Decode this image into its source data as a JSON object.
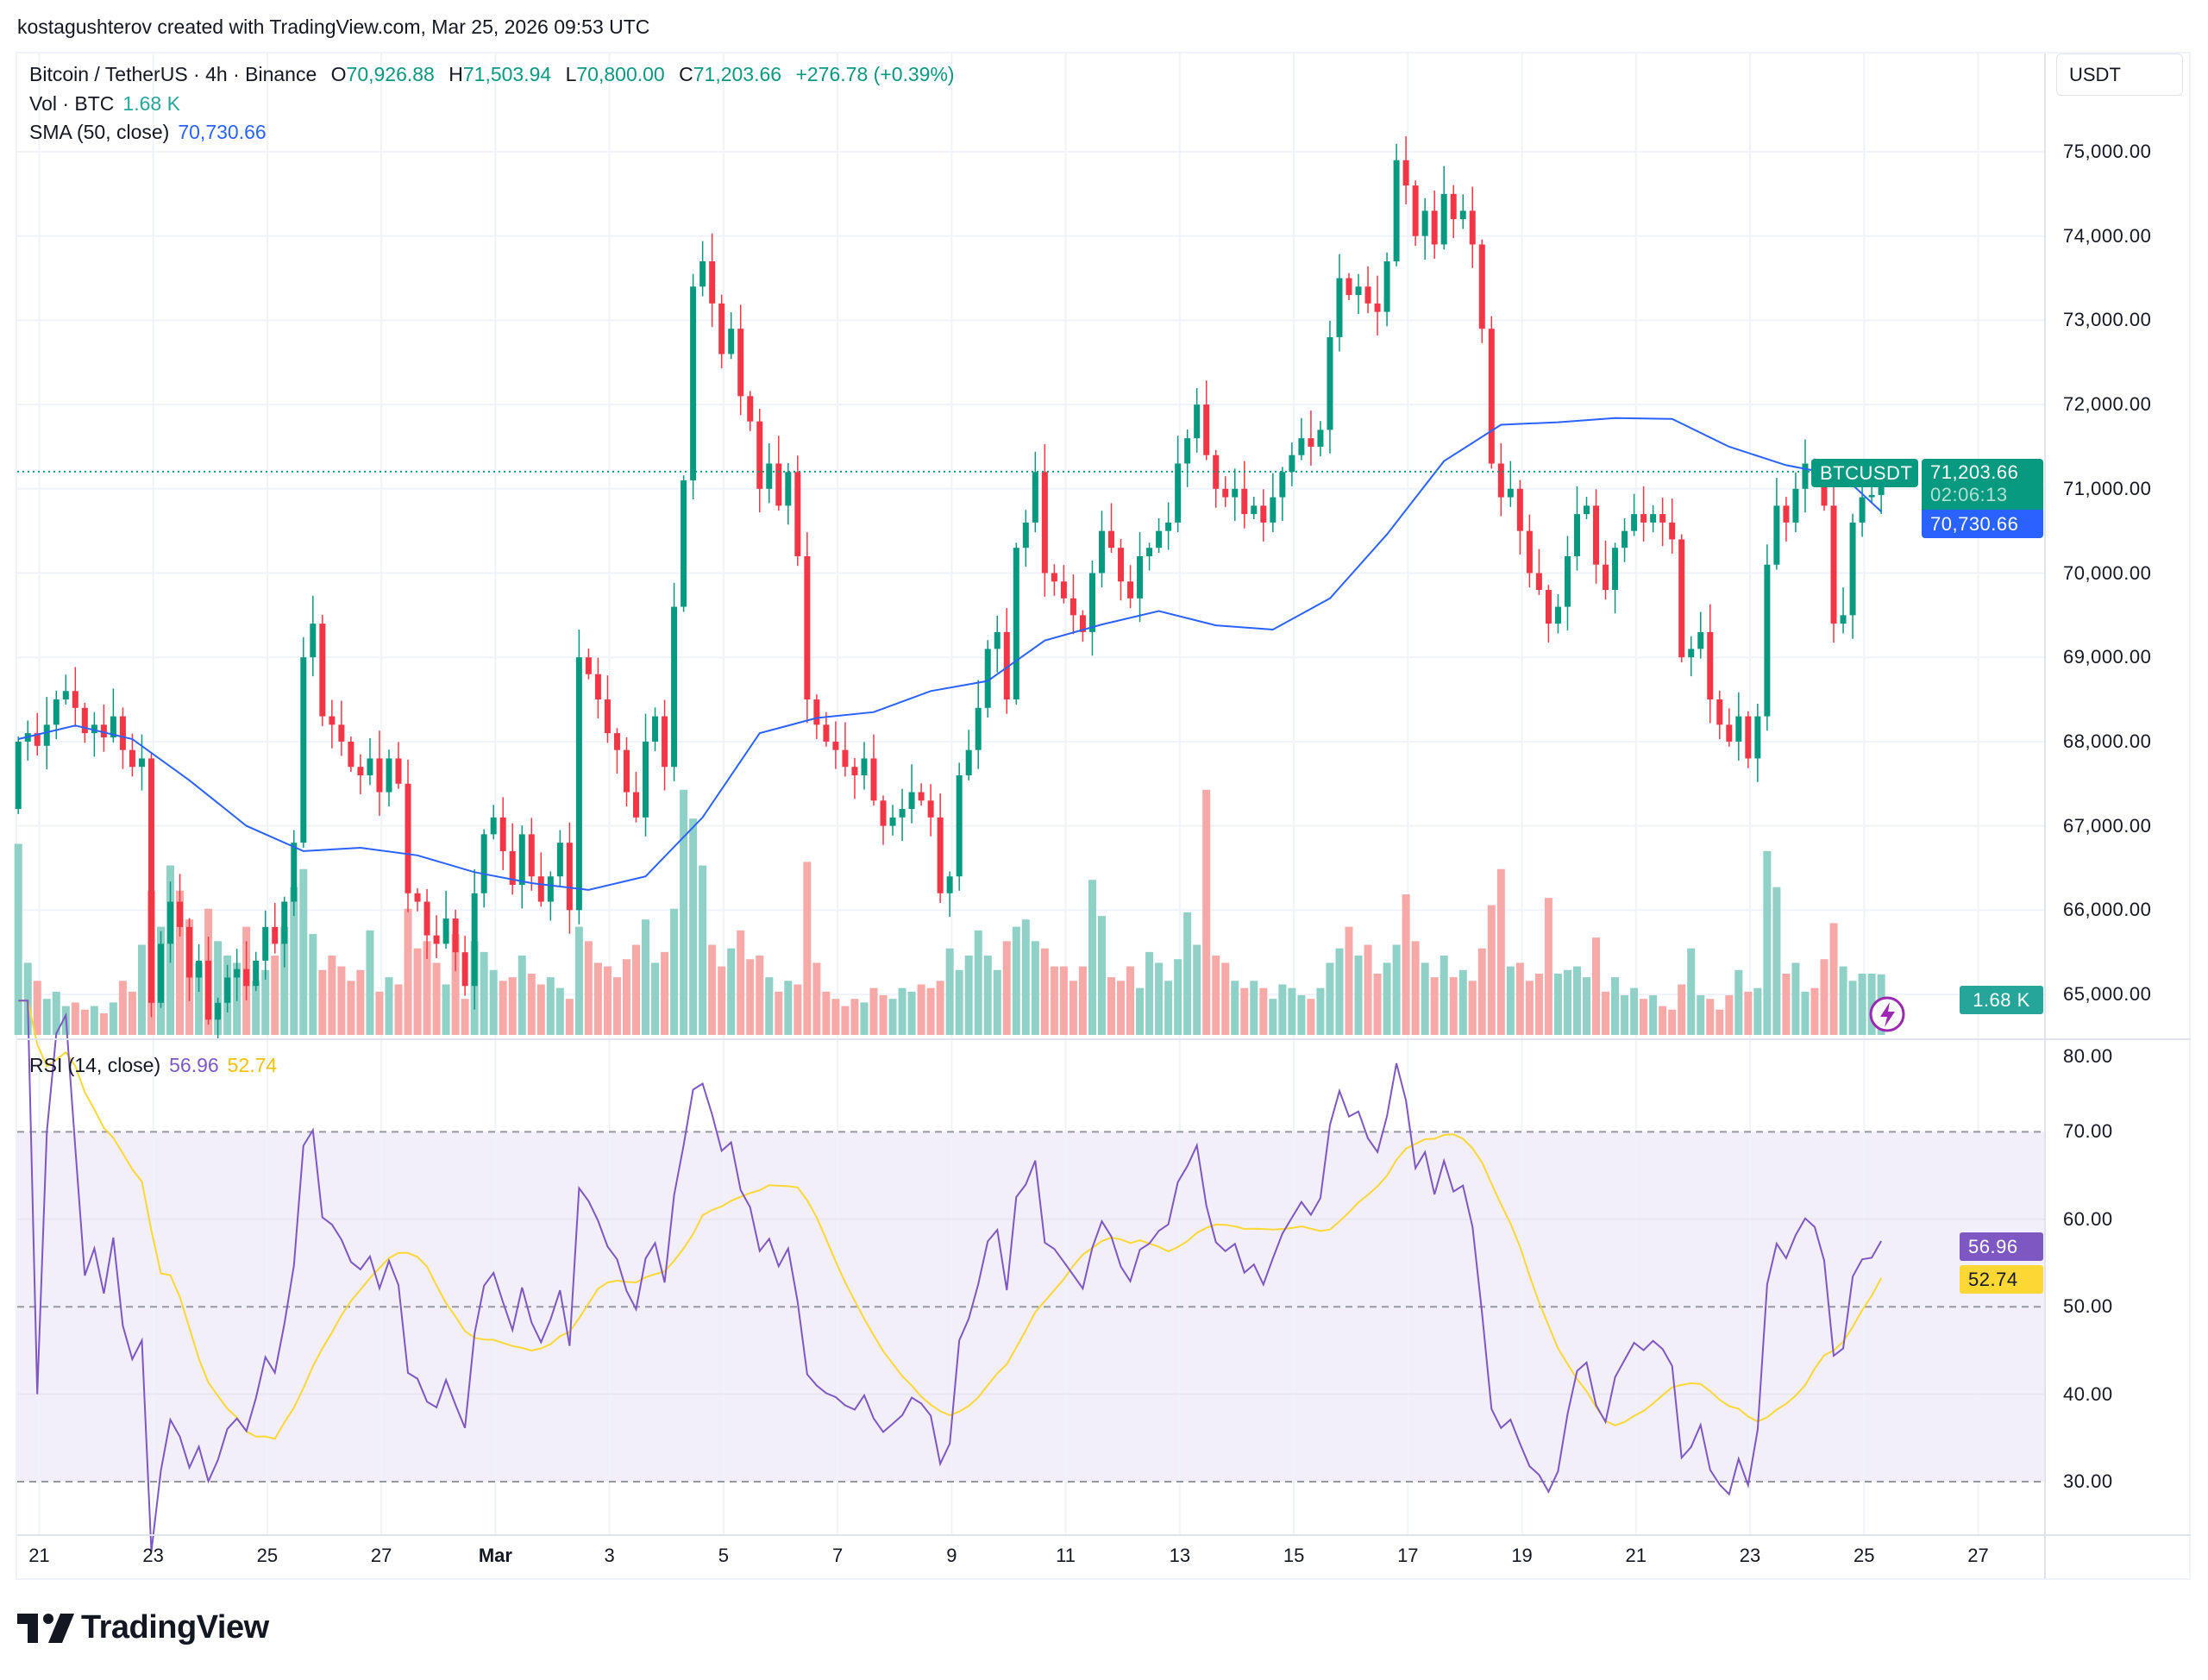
{
  "attribution": "kostagushterov created with TradingView.com, Mar 25, 2026 09:53 UTC",
  "legend": {
    "symbol": "Bitcoin / TetherUS · 4h · Binance",
    "o_label": "O",
    "o": "70,926.88",
    "h_label": "H",
    "h": "71,503.94",
    "l_label": "L",
    "l": "70,800.00",
    "c_label": "C",
    "c": "71,203.66",
    "change": "+276.78 (+0.39%)",
    "vol_label": "Vol · BTC",
    "vol": "1.68 K",
    "sma_label": "SMA (50, close)",
    "sma": "70,730.66",
    "rsi_label": "RSI (14, close)",
    "rsi": "56.96",
    "rsi_ma": "52.74"
  },
  "currency": "USDT",
  "tags": {
    "symbol": "BTCUSDT",
    "price": "71,203.66",
    "countdown": "02:06:13",
    "sma": "70,730.66",
    "volume": "1.68 K",
    "rsi": "56.96",
    "rsi_ma": "52.74"
  },
  "colors": {
    "up": "#089981",
    "down": "#f23645",
    "sma": "#2962ff",
    "rsi": "#7e57c2",
    "rsi_ma": "#fdd835",
    "rsi_band": "#f2eefa"
  },
  "logo": "TradingView",
  "chart_data": {
    "type": "candlestick",
    "symbol": "BTCUSDT",
    "interval": "4h",
    "price_ticks": [
      75000,
      74000,
      73000,
      72000,
      71000,
      70000,
      69000,
      68000,
      67000,
      66000,
      65000
    ],
    "price_tick_labels": [
      "75,000.00",
      "74,000.00",
      "73,000.00",
      "72,000.00",
      "71,000.00",
      "70,000.00",
      "69,000.00",
      "68,000.00",
      "67,000.00",
      "66,000.00",
      "65,000.00"
    ],
    "rsi_ticks": [
      80,
      70,
      60,
      50,
      40,
      30
    ],
    "rsi_tick_labels": [
      "80.00",
      "70.00",
      "60.00",
      "50.00",
      "40.00",
      "30.00"
    ],
    "rsi_bands": {
      "upper": 70,
      "middle": 50,
      "lower": 30
    },
    "time_labels": [
      "21",
      "23",
      "25",
      "27",
      "Mar",
      "3",
      "5",
      "7",
      "9",
      "11",
      "13",
      "15",
      "17",
      "19",
      "21",
      "23",
      "25",
      "27"
    ],
    "last_price": 71203.66,
    "close": [
      68000,
      68100,
      67950,
      68200,
      68500,
      68600,
      68400,
      68100,
      68200,
      68050,
      68300,
      67900,
      67700,
      67800,
      64900,
      65600,
      66100,
      65800,
      65200,
      65400,
      64700,
      64900,
      65200,
      65300,
      65100,
      65400,
      65800,
      65600,
      66100,
      66800,
      69000,
      69400,
      68300,
      68200,
      68000,
      67700,
      67600,
      67800,
      67400,
      67800,
      67500,
      66200,
      66100,
      65700,
      65600,
      65900,
      65500,
      65100,
      66200,
      66900,
      67100,
      66700,
      66300,
      66900,
      66400,
      66100,
      66400,
      66800,
      66000,
      69000,
      68800,
      68500,
      68100,
      67900,
      67400,
      67100,
      68000,
      68300,
      67700,
      69600,
      71100,
      73400,
      73700,
      73200,
      72600,
      72900,
      72100,
      71800,
      71000,
      71300,
      70800,
      71200,
      70200,
      68500,
      68200,
      68000,
      67900,
      67700,
      67600,
      67800,
      67300,
      67000,
      67100,
      67200,
      67400,
      67300,
      67100,
      66200,
      66400,
      67600,
      67900,
      68400,
      69100,
      69300,
      68500,
      70300,
      70600,
      71200,
      70000,
      69900,
      69700,
      69500,
      69300,
      70000,
      70500,
      70300,
      69900,
      69700,
      70200,
      70300,
      70500,
      70600,
      71300,
      71600,
      72000,
      71400,
      71000,
      70900,
      71000,
      70700,
      70800,
      70600,
      70900,
      71200,
      71400,
      71600,
      71500,
      71700,
      72800,
      73500,
      73300,
      73400,
      73200,
      73100,
      73700,
      74900,
      74600,
      74000,
      74300,
      73900,
      74500,
      74200,
      74300,
      73900,
      72900,
      71300,
      70900,
      71000,
      70500,
      70000,
      69800,
      69400,
      69600,
      70200,
      70700,
      70800,
      70100,
      69800,
      70300,
      70500,
      70700,
      70600,
      70700,
      70600,
      70400,
      69000,
      69100,
      69300,
      68500,
      68200,
      68000,
      68300,
      67800,
      68300,
      70100,
      70800,
      70600,
      71000,
      71300,
      71200,
      70800,
      69400,
      69500,
      70600,
      70900,
      70926.88,
      71203.66
    ],
    "volume_k": [
      5.3,
      2.0,
      1.5,
      1.0,
      1.2,
      0.8,
      0.9,
      0.7,
      0.8,
      0.6,
      0.9,
      1.5,
      1.2,
      2.5,
      4.0,
      3.0,
      4.7,
      4.0,
      3.2,
      2.0,
      3.5,
      2.6,
      2.2,
      2.0,
      3.0,
      1.5,
      1.8,
      2.2,
      3.0,
      4.1,
      4.6,
      2.8,
      1.8,
      2.2,
      1.9,
      1.5,
      1.8,
      2.9,
      1.2,
      1.6,
      1.4,
      3.5,
      2.4,
      2.6,
      2.0,
      1.4,
      2.8,
      1.0,
      2.6,
      2.3,
      1.8,
      1.5,
      1.6,
      2.2,
      1.7,
      1.4,
      1.6,
      1.3,
      1.0,
      3.0,
      2.6,
      2.0,
      1.9,
      1.6,
      2.1,
      2.5,
      3.2,
      2.0,
      2.3,
      3.5,
      6.8,
      6.0,
      4.7,
      2.5,
      1.9,
      2.4,
      2.9,
      2.1,
      2.2,
      1.6,
      1.2,
      1.5,
      1.4,
      4.8,
      2.0,
      1.2,
      1.0,
      0.8,
      1.0,
      0.9,
      1.3,
      1.1,
      1.0,
      1.3,
      1.2,
      1.4,
      1.3,
      1.5,
      2.4,
      1.8,
      2.2,
      2.9,
      2.2,
      1.8,
      2.6,
      3.0,
      3.2,
      2.6,
      2.4,
      1.9,
      1.9,
      1.5,
      1.9,
      4.3,
      3.3,
      1.6,
      1.5,
      1.9,
      1.3,
      2.3,
      2.0,
      1.5,
      2.1,
      3.4,
      2.5,
      6.8,
      2.2,
      2.0,
      1.5,
      1.3,
      1.5,
      1.3,
      1.0,
      1.4,
      1.3,
      1.1,
      1.0,
      1.3,
      2.0,
      2.4,
      3.0,
      2.2,
      2.5,
      1.7,
      2.0,
      2.5,
      3.9,
      2.6,
      2.0,
      1.6,
      2.2,
      1.6,
      1.8,
      1.5,
      2.4,
      3.6,
      4.6,
      1.9,
      2.0,
      1.5,
      1.7,
      3.8,
      1.7,
      1.8,
      1.9,
      1.6,
      2.7,
      1.2,
      1.6,
      1.1,
      1.3,
      1.0,
      1.1,
      0.8,
      0.7,
      1.4,
      2.4,
      1.1,
      1.0,
      0.7,
      1.1,
      1.8,
      1.2,
      1.3,
      5.1,
      4.1,
      1.7,
      2.0,
      1.2,
      1.3,
      2.1,
      3.1,
      1.9,
      1.5,
      1.7,
      1.7,
      1.68
    ],
    "sma50_daily": [
      68030,
      68190,
      68030,
      67540,
      67000,
      66700,
      66740,
      66650,
      66450,
      66320,
      66240,
      66400,
      67100,
      68100,
      68280,
      68350,
      68600,
      68720,
      69200,
      69390,
      69550,
      69380,
      69330,
      69700,
      70460,
      71330,
      71760,
      71790,
      71840,
      71830,
      71500,
      71280,
      71150,
      70730.66
    ]
  }
}
